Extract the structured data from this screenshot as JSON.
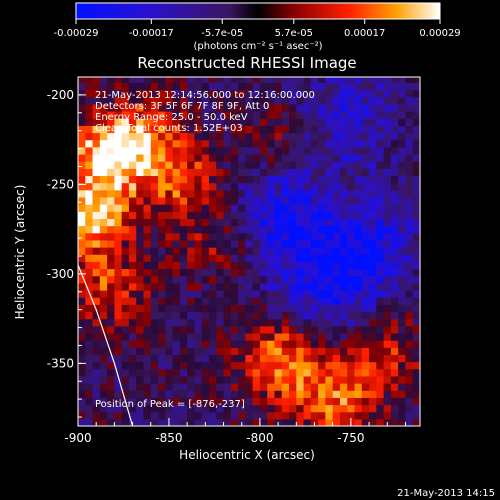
{
  "chart_data": {
    "type": "heatmap",
    "title": "Reconstructed RHESSI Image",
    "xlabel": "Heliocentric X (arcsec)",
    "ylabel": "Heliocentric Y (arcsec)",
    "xlim": [
      -900,
      -712
    ],
    "ylim": [
      -385,
      -190
    ],
    "x_ticks": [
      "-900",
      "-850",
      "-800",
      "-750"
    ],
    "y_ticks": [
      "-200",
      "-250",
      "-300",
      "-350"
    ],
    "colorbar": {
      "range": [
        -0.00029,
        0.00029
      ],
      "tick_labels": [
        "-0.00029",
        "-0.00017",
        "-5.7e-05",
        "5.7e-05",
        "0.00017",
        "0.00029"
      ],
      "unit_label": "(photons cm⁻² s⁻¹ asec⁻²)"
    },
    "annotations": [
      "21-May-2013 12:14:56.000 to 12:16:00.000",
      "Detectors: 3F 5F 6F 7F 8F 9F, Att 0",
      "Energy Range: 25.0 - 50.0 keV",
      "Clean     Total counts: 1.52E+03"
    ],
    "peak_label": "Position of Peak = [-876,-237]",
    "bright_regions": [
      {
        "x": -885,
        "y": -235,
        "level": 1.0
      },
      {
        "x": -895,
        "y": -270,
        "level": 0.9
      },
      {
        "x": -865,
        "y": -225,
        "level": 0.55
      },
      {
        "x": -845,
        "y": -250,
        "level": 0.6
      },
      {
        "x": -885,
        "y": -310,
        "level": 0.55
      },
      {
        "x": -790,
        "y": -350,
        "level": 0.85
      },
      {
        "x": -760,
        "y": -375,
        "level": 0.7
      },
      {
        "x": -735,
        "y": -345,
        "level": 0.5
      },
      {
        "x": -825,
        "y": -285,
        "level": 0.35
      },
      {
        "x": -790,
        "y": -225,
        "level": 0.3
      }
    ],
    "dark_regions": [
      {
        "x": -790,
        "y": -270,
        "level": -0.7
      },
      {
        "x": -765,
        "y": -310,
        "level": -0.6
      },
      {
        "x": -755,
        "y": -215,
        "level": -0.5
      },
      {
        "x": -740,
        "y": -285,
        "level": -0.55
      }
    ],
    "limb_curve": [
      [
        -900,
        -295
      ],
      [
        -890,
        -320
      ],
      [
        -880,
        -350
      ],
      [
        -870,
        -385
      ]
    ]
  },
  "footer_timestamp": "21-May-2013 14:15"
}
